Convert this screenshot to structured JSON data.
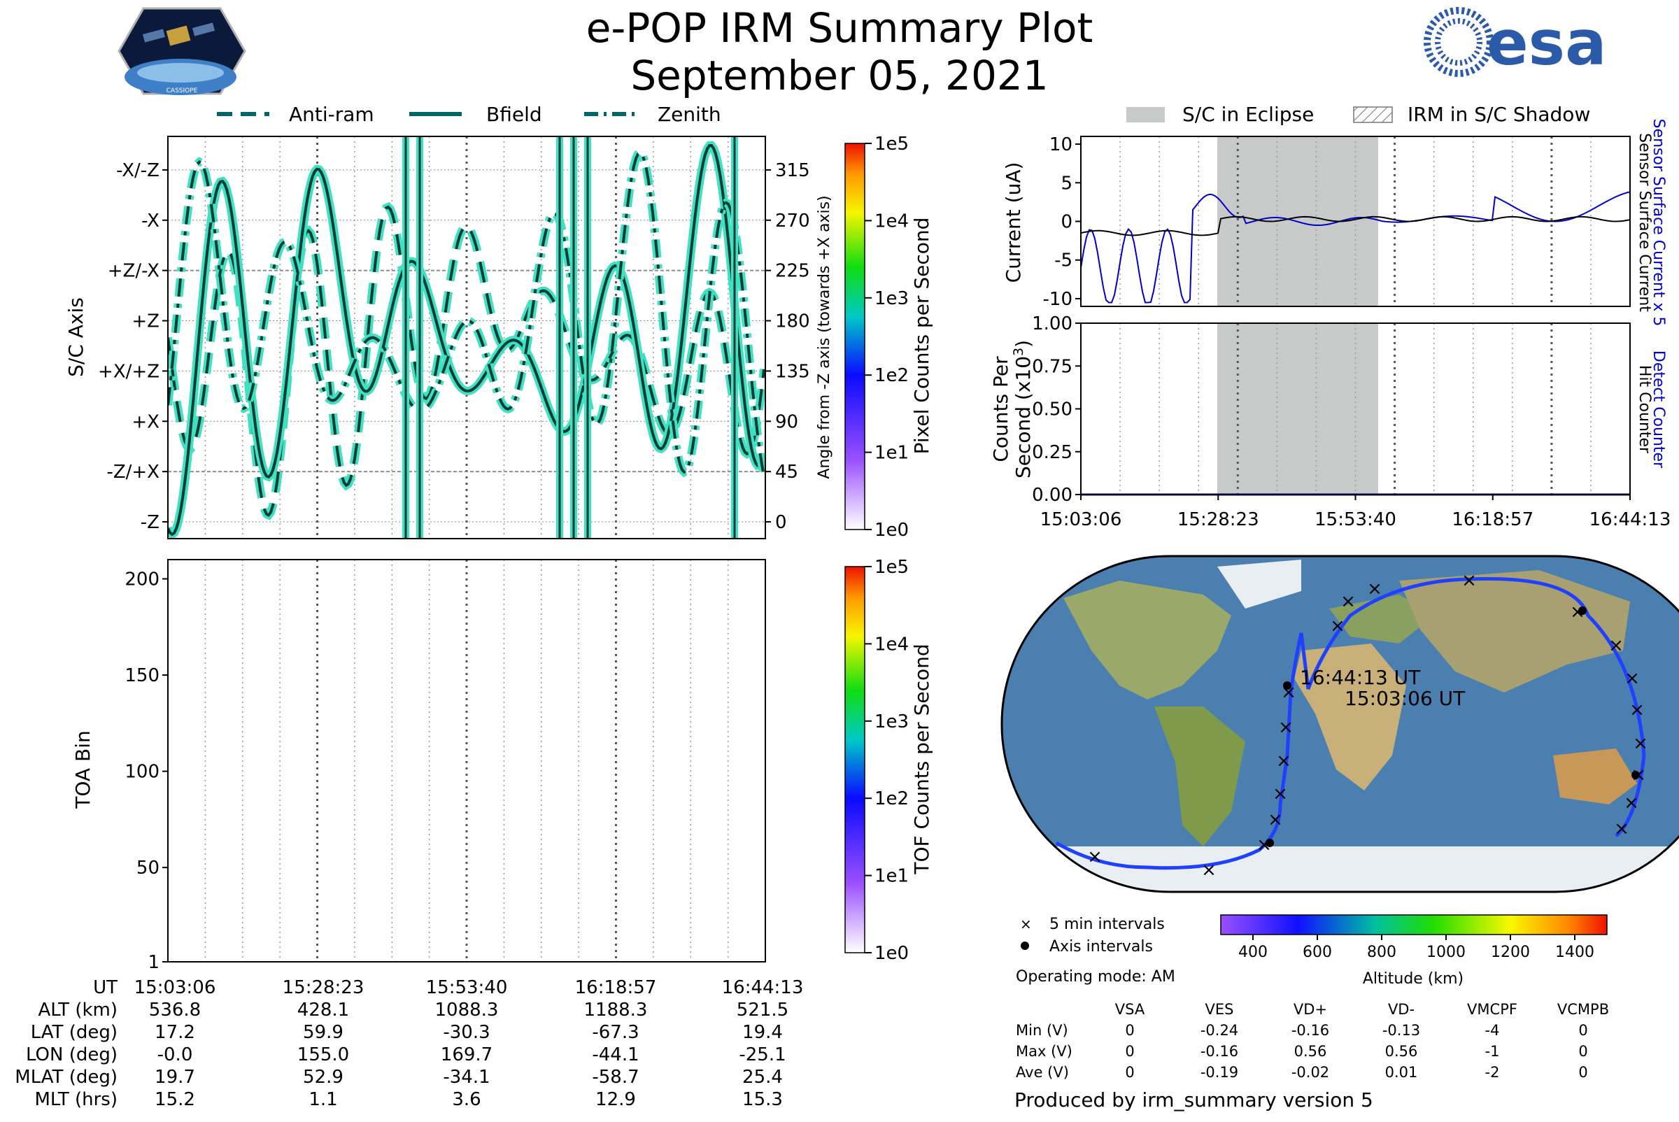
{
  "header": {
    "title": "e-POP IRM Summary Plot",
    "date": "September 05, 2021",
    "logo_left_text": "CASSIOPE",
    "logo_right_text": "esa"
  },
  "legend_left": {
    "items": [
      {
        "label": "Anti-ram",
        "style": "dashed"
      },
      {
        "label": "Bfield",
        "style": "solid"
      },
      {
        "label": "Zenith",
        "style": "dashdot"
      }
    ]
  },
  "legend_right": {
    "items": [
      {
        "label": "S/C in Eclipse",
        "style": "grey-fill"
      },
      {
        "label": "IRM in S/C Shadow",
        "style": "hatched"
      }
    ]
  },
  "colors": {
    "curve_fill": "#40e0c0",
    "curve_line": "#063d36",
    "eclipse": "#c8cac9",
    "sensor_current": "#0000cc",
    "detect_counter": "#0000cc"
  },
  "chart_data": [
    {
      "type": "line",
      "id": "sc_axis_panel",
      "ylabel": "S/C Axis",
      "ylabel_right": "Angle from -Z axis (towards +X axis)",
      "y_tick_labels_left": [
        "-X/-Z",
        "-X",
        "+Z/-X",
        "+Z",
        "+X/+Z",
        "+X",
        "-Z/+X",
        "-Z"
      ],
      "y_tick_labels_right": [
        "315",
        "270",
        "225",
        "180",
        "135",
        "90",
        "45",
        "0"
      ],
      "ylim": [
        -15,
        345
      ],
      "series": [
        {
          "name": "Anti-ram"
        },
        {
          "name": "Bfield"
        },
        {
          "name": "Zenith"
        }
      ],
      "colorbar": {
        "label": "Pixel Counts per Second",
        "ticks": [
          "1e0",
          "1e1",
          "1e2",
          "1e3",
          "1e4",
          "1e5"
        ],
        "scale": "log"
      }
    },
    {
      "type": "heatmap",
      "id": "toa_panel",
      "ylabel": "TOA Bin",
      "y_ticks": [
        1,
        50,
        100,
        150,
        200
      ],
      "ylim": [
        1,
        210
      ],
      "colorbar": {
        "label": "TOF Counts per Second",
        "ticks": [
          "1e0",
          "1e1",
          "1e2",
          "1e3",
          "1e4",
          "1e5"
        ],
        "scale": "log"
      }
    },
    {
      "type": "line",
      "id": "current_panel",
      "ylabel": "Current (uA)",
      "y_ticks": [
        10,
        5,
        0,
        -5,
        -10
      ],
      "ylim": [
        -11,
        11
      ],
      "right_label_blue": "Sensor Surface Current x 5",
      "right_label_black": "Sensor Surface Current",
      "series": [
        {
          "name": "Sensor Surface Current x 5",
          "color": "#0000cc"
        },
        {
          "name": "Sensor Surface Current",
          "color": "#000000"
        }
      ]
    },
    {
      "type": "line",
      "id": "counts_panel",
      "ylabel_line1": "Counts Per",
      "ylabel_line2": "Second (x10",
      "ylabel_sup": "3",
      "ylabel_close": ")",
      "y_ticks": [
        "1.00",
        "0.75",
        "0.50",
        "0.25",
        "0.00"
      ],
      "ylim": [
        0,
        1
      ],
      "right_label_blue": "Detect Counter",
      "right_label_black": "Hit Counter",
      "x_tick_labels": [
        "15:03:06",
        "15:28:23",
        "15:53:40",
        "16:18:57",
        "16:44:13"
      ],
      "series": [
        {
          "name": "Detect Counter",
          "x": [
            "15:03:06",
            "16:44:13"
          ],
          "values": [
            0.0,
            0.0
          ]
        }
      ]
    }
  ],
  "map": {
    "start_label": "15:03:06 UT",
    "end_label": "16:44:13 UT",
    "legend_5min": "5 min intervals",
    "legend_axis": "Axis intervals",
    "operating_mode": "Operating mode: AM",
    "colorbar_label": "Altitude (km)",
    "colorbar_ticks": [
      "400",
      "600",
      "800",
      "1000",
      "1200",
      "1400"
    ],
    "colorbar_range": [
      300,
      1500
    ]
  },
  "ut_table": {
    "row_labels": [
      "UT",
      "ALT (km)",
      "LAT (deg)",
      "LON (deg)",
      "MLAT (deg)",
      "MLT (hrs)"
    ],
    "columns": [
      [
        "15:03:06",
        "536.8",
        "17.2",
        "-0.0",
        "19.7",
        "15.2"
      ],
      [
        "15:28:23",
        "428.1",
        "59.9",
        "155.0",
        "52.9",
        "1.1"
      ],
      [
        "15:53:40",
        "1088.3",
        "-30.3",
        "169.7",
        "-34.1",
        "3.6"
      ],
      [
        "16:18:57",
        "1188.3",
        "-67.3",
        "-44.1",
        "-58.7",
        "12.9"
      ],
      [
        "16:44:13",
        "521.5",
        "19.4",
        "-25.1",
        "25.4",
        "15.3"
      ]
    ]
  },
  "voltage_table": {
    "headers": [
      "VSA",
      "VES",
      "VD+",
      "VD-",
      "VMCPF",
      "VCMPB"
    ],
    "rows": [
      {
        "label": "Min (V)",
        "values": [
          "0",
          "-0.24",
          "-0.16",
          "-0.13",
          "-4",
          "0"
        ]
      },
      {
        "label": "Max (V)",
        "values": [
          "0",
          "-0.16",
          "0.56",
          "0.56",
          "-1",
          "0"
        ]
      },
      {
        "label": "Ave (V)",
        "values": [
          "0",
          "-0.19",
          "-0.02",
          "0.01",
          "-2",
          "0"
        ]
      }
    ]
  },
  "footer": "Produced by irm_summary version 5"
}
